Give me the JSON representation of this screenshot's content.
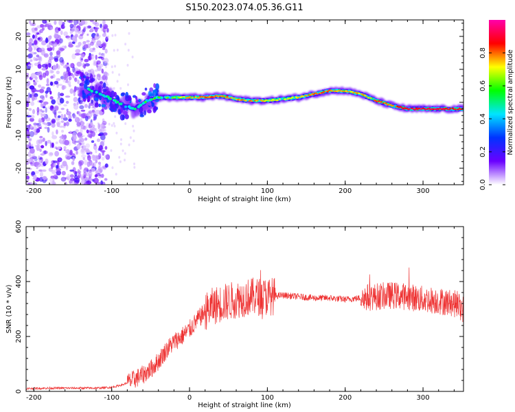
{
  "figure_title": "S150.2023.074.05.36.G11",
  "chart_data": [
    {
      "type": "heatmap",
      "title": "S150.2023.074.05.36.G11",
      "xlabel": "Height of straight line (km)",
      "ylabel": "Frequency (Hz)",
      "xlim": [
        -210,
        352
      ],
      "ylim": [
        -25,
        25
      ],
      "xticks": [
        -200,
        -100,
        0,
        100,
        200,
        300
      ],
      "yticks": [
        -20,
        -10,
        0,
        10,
        20
      ],
      "colorbar": {
        "label": "Normalized spectral amplitude",
        "range": [
          0,
          1
        ],
        "ticks": [
          0.0,
          0.2,
          0.4,
          0.6,
          0.8
        ],
        "colormap": "rainbow",
        "colors": [
          "#ffffff",
          "#6a00ff",
          "#0033ff",
          "#00e5ff",
          "#00ff00",
          "#ffff00",
          "#ff0000",
          "#ff00aa"
        ]
      },
      "ridge": {
        "x": [
          -140,
          -120,
          -100,
          -85,
          -70,
          -55,
          -40,
          -20,
          0,
          20,
          40,
          60,
          80,
          100,
          120,
          140,
          160,
          180,
          200,
          220,
          240,
          260,
          280,
          300,
          320,
          352
        ],
        "freq": [
          5,
          3,
          1,
          -1,
          -2,
          0.5,
          1.5,
          1.5,
          1.5,
          1.5,
          2,
          1,
          0.5,
          0.5,
          1,
          1.5,
          2.5,
          3.5,
          3.5,
          2.5,
          0.5,
          -1,
          -2,
          -2,
          -2,
          -2
        ],
        "amplitude": [
          0.4,
          0.4,
          0.5,
          0.4,
          0.45,
          0.6,
          0.6,
          0.65,
          0.75,
          0.8,
          0.8,
          0.75,
          0.8,
          0.7,
          0.7,
          0.75,
          0.8,
          0.8,
          0.75,
          0.75,
          0.8,
          0.8,
          0.9,
          0.9,
          0.9,
          0.85
        ]
      },
      "noise_region_x": [
        -210,
        -105
      ],
      "grid": false
    },
    {
      "type": "line",
      "xlabel": "Height of straight line (km)",
      "ylabel": "SNR (10 * v/v)",
      "xlim": [
        -210,
        352
      ],
      "ylim": [
        0,
        600
      ],
      "xticks": [
        -200,
        -100,
        0,
        100,
        200,
        300
      ],
      "yticks": [
        0,
        200,
        400,
        600
      ],
      "color": "#ee3333",
      "series": [
        {
          "x": [
            -210,
            -180,
            -150,
            -120,
            -100,
            -85,
            -70,
            -60,
            -50,
            -40,
            -30,
            -20,
            -10,
            0,
            10,
            20,
            30,
            40,
            60,
            80,
            100,
            120,
            140,
            160,
            180,
            200,
            220,
            240,
            260,
            280,
            300,
            320,
            340,
            352
          ],
          "values": [
            10,
            12,
            12,
            12,
            15,
            25,
            45,
            60,
            80,
            110,
            150,
            180,
            200,
            225,
            260,
            290,
            310,
            320,
            335,
            345,
            345,
            350,
            345,
            340,
            340,
            335,
            340,
            345,
            350,
            345,
            335,
            330,
            320,
            300
          ]
        }
      ],
      "grid": false
    }
  ]
}
